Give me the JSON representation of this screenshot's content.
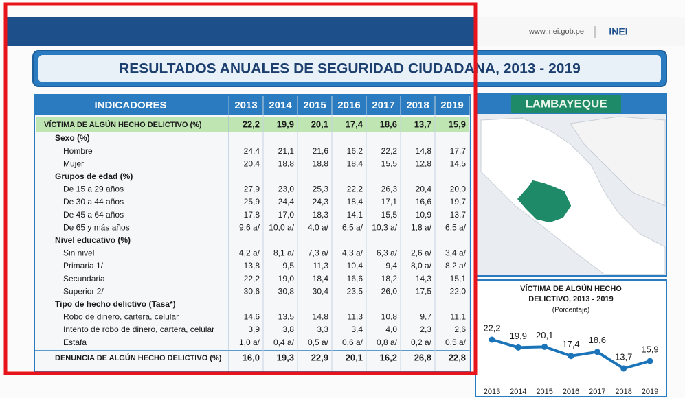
{
  "header": {
    "url": "www.inei.gob.pe",
    "logo": "INEI"
  },
  "title": "RESULTADOS ANUALES DE SEGURIDAD CIUDADANA, 2013 - 2019",
  "table": {
    "header": [
      "INDICADORES",
      "2013",
      "2014",
      "2015",
      "2016",
      "2017",
      "2018",
      "2019"
    ],
    "main_row": {
      "label": "VÍCTIMA DE ALGÚN HECHO DELICTIVO (%)",
      "values": [
        "22,2",
        "19,9",
        "20,1",
        "17,4",
        "18,6",
        "13,7",
        "15,9"
      ]
    },
    "sections": [
      {
        "title": "Sexo (%)",
        "rows": [
          {
            "label": "Hombre",
            "values": [
              "24,4",
              "21,1",
              "21,6",
              "16,2",
              "22,2",
              "14,8",
              "17,7"
            ]
          },
          {
            "label": "Mujer",
            "values": [
              "20,4",
              "18,8",
              "18,8",
              "18,4",
              "15,5",
              "12,8",
              "14,5"
            ]
          }
        ]
      },
      {
        "title": "Grupos de edad (%)",
        "rows": [
          {
            "label": "De 15 a 29 años",
            "values": [
              "27,9",
              "23,0",
              "25,3",
              "22,2",
              "26,3",
              "20,4",
              "20,0"
            ]
          },
          {
            "label": "De 30 a 44 años",
            "values": [
              "25,9",
              "24,4",
              "24,3",
              "18,4",
              "17,1",
              "16,6",
              "19,7"
            ]
          },
          {
            "label": "De 45 a 64 años",
            "values": [
              "17,8",
              "17,0",
              "18,3",
              "14,1",
              "15,5",
              "10,9",
              "13,7"
            ]
          },
          {
            "label": "De 65 y más años",
            "values": [
              "9,6 a/",
              "10,0 a/",
              "4,0 a/",
              "6,5 a/",
              "10,3 a/",
              "1,8 a/",
              "6,5 a/"
            ]
          }
        ]
      },
      {
        "title": "Nivel educativo (%)",
        "rows": [
          {
            "label": "Sin nivel",
            "values": [
              "4,2 a/",
              "8,1 a/",
              "7,3 a/",
              "4,3 a/",
              "6,3 a/",
              "2,6 a/",
              "3,4 a/"
            ]
          },
          {
            "label": "Primaria 1/",
            "values": [
              "13,8",
              "9,5",
              "11,3",
              "10,4",
              "9,4",
              "8,0 a/",
              "8,2 a/"
            ]
          },
          {
            "label": "Secundaria",
            "values": [
              "22,2",
              "19,0",
              "18,4",
              "16,6",
              "18,2",
              "14,3",
              "15,1"
            ]
          },
          {
            "label": "Superior 2/",
            "values": [
              "30,6",
              "30,8",
              "30,4",
              "23,5",
              "26,0",
              "17,5",
              "22,0"
            ]
          }
        ]
      },
      {
        "title": "Tipo de hecho delictivo (Tasa*)",
        "rows": [
          {
            "label": "Robo de dinero, cartera, celular",
            "values": [
              "14,6",
              "13,5",
              "14,8",
              "11,3",
              "10,8",
              "9,7",
              "11,1"
            ]
          },
          {
            "label": "Intento de robo de dinero, cartera, celular",
            "values": [
              "3,9",
              "3,8",
              "3,3",
              "3,4",
              "4,0",
              "2,3",
              "2,6"
            ]
          },
          {
            "label": "Estafa",
            "values": [
              "1,0 a/",
              "0,4 a/",
              "0,5 a/",
              "0,6 a/",
              "0,8 a/",
              "0,2 a/",
              "0,5 a/"
            ]
          }
        ]
      }
    ],
    "footer_row": {
      "label": "DENUNCIA DE ALGÚN HECHO DELICTIVO (%)",
      "values": [
        "16,0",
        "19,3",
        "22,9",
        "20,1",
        "16,2",
        "26,8",
        "22,8"
      ]
    }
  },
  "map": {
    "label": "LAMBAYEQUE"
  },
  "chart": {
    "type": "line",
    "title": [
      "VÍCTIMA DE ALGÚN HECHO",
      "DELICTIVO, 2013 - 2019"
    ],
    "subtitle": "(Porcentaje)",
    "categories": [
      "2013",
      "2014",
      "2015",
      "2016",
      "2017",
      "2018",
      "2019"
    ],
    "values": [
      22.2,
      19.9,
      20.1,
      17.4,
      18.6,
      13.7,
      15.9
    ],
    "value_labels": [
      "22,2",
      "19,9",
      "20,1",
      "17,4",
      "18,6",
      "13,7",
      "15,9"
    ],
    "color": "#1b73b8"
  }
}
